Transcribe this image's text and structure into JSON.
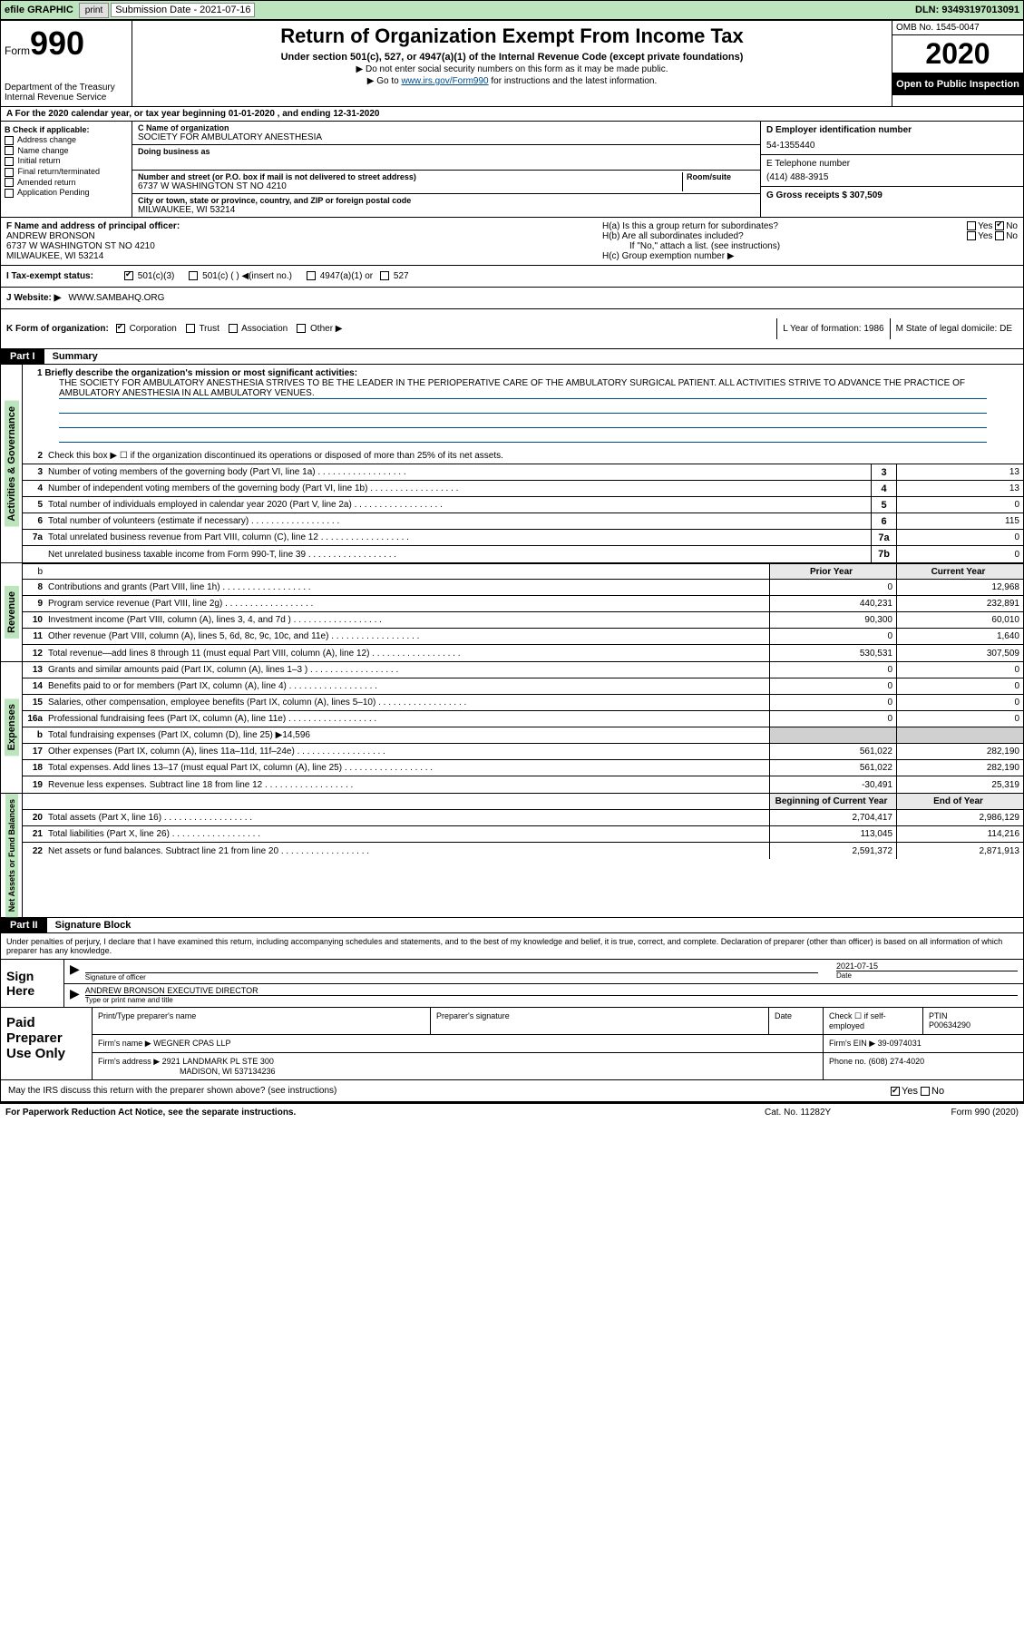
{
  "topbar": {
    "efile": "efile GRAPHIC",
    "print": "print",
    "subm_label": "Submission Date - 2021-07-16",
    "dln_label": "DLN: 93493197013091"
  },
  "header": {
    "form_word": "Form",
    "form_num": "990",
    "dept": "Department of the Treasury\nInternal Revenue Service",
    "title": "Return of Organization Exempt From Income Tax",
    "subtitle": "Under section 501(c), 527, or 4947(a)(1) of the Internal Revenue Code (except private foundations)",
    "note1": "▶ Do not enter social security numbers on this form as it may be made public.",
    "note2_pre": "▶ Go to ",
    "note2_link": "www.irs.gov/Form990",
    "note2_post": " for instructions and the latest information.",
    "omb": "OMB No. 1545-0047",
    "year": "2020",
    "inspection": "Open to Public Inspection"
  },
  "period": "A For the 2020 calendar year, or tax year beginning 01-01-2020    , and ending 12-31-2020",
  "boxB": {
    "label": "B Check if applicable:",
    "items": [
      "Address change",
      "Name change",
      "Initial return",
      "Final return/terminated",
      "Amended return",
      "Application Pending"
    ]
  },
  "boxC": {
    "name_lbl": "C Name of organization",
    "name": "SOCIETY FOR AMBULATORY ANESTHESIA",
    "dba_lbl": "Doing business as",
    "dba": "",
    "addr_lbl": "Number and street (or P.O. box if mail is not delivered to street address)",
    "room_lbl": "Room/suite",
    "addr": "6737 W WASHINGTON ST NO 4210",
    "city_lbl": "City or town, state or province, country, and ZIP or foreign postal code",
    "city": "MILWAUKEE, WI  53214"
  },
  "boxD": {
    "label": "D Employer identification number",
    "value": "54-1355440"
  },
  "boxE": {
    "label": "E Telephone number",
    "value": "(414) 488-3915"
  },
  "boxG": {
    "label": "G Gross receipts $ 307,509"
  },
  "boxF": {
    "label": "F  Name and address of principal officer:",
    "name": "ANDREW BRONSON",
    "addr": "6737 W WASHINGTON ST NO 4210",
    "city": "MILWAUKEE, WI  53214"
  },
  "boxH": {
    "a": "H(a)  Is this a group return for subordinates?",
    "b": "H(b)  Are all subordinates included?",
    "b_note": "If \"No,\" attach a list. (see instructions)",
    "c": "H(c)  Group exemption number ▶"
  },
  "boxI": {
    "label": "I   Tax-exempt status:",
    "opts": [
      "501(c)(3)",
      "501(c) (  ) ◀(insert no.)",
      "4947(a)(1) or",
      "527"
    ]
  },
  "boxJ": {
    "label": "J   Website: ▶",
    "value": "WWW.SAMBAHQ.ORG"
  },
  "boxK": {
    "label": "K Form of organization:",
    "opts": [
      "Corporation",
      "Trust",
      "Association",
      "Other ▶"
    ]
  },
  "boxL": {
    "label": "L Year of formation: 1986"
  },
  "boxM": {
    "label": "M State of legal domicile: DE"
  },
  "part1": {
    "hdr": "Part I",
    "title": "Summary",
    "mission_lbl": "1  Briefly describe the organization's mission or most significant activities:",
    "mission": "THE SOCIETY FOR AMBULATORY ANESTHESIA STRIVES TO BE THE LEADER IN THE PERIOPERATIVE CARE OF THE AMBULATORY SURGICAL PATIENT. ALL ACTIVITIES STRIVE TO ADVANCE THE PRACTICE OF AMBULATORY ANESTHESIA IN ALL AMBULATORY VENUES.",
    "line2": "Check this box ▶ ☐  if the organization discontinued its operations or disposed of more than 25% of its net assets."
  },
  "gov_lines": [
    {
      "n": "3",
      "txt": "Number of voting members of the governing body (Part VI, line 1a)",
      "box": "3",
      "v": "13"
    },
    {
      "n": "4",
      "txt": "Number of independent voting members of the governing body (Part VI, line 1b)",
      "box": "4",
      "v": "13"
    },
    {
      "n": "5",
      "txt": "Total number of individuals employed in calendar year 2020 (Part V, line 2a)",
      "box": "5",
      "v": "0"
    },
    {
      "n": "6",
      "txt": "Total number of volunteers (estimate if necessary)",
      "box": "6",
      "v": "115"
    },
    {
      "n": "7a",
      "txt": "Total unrelated business revenue from Part VIII, column (C), line 12",
      "box": "7a",
      "v": "0"
    },
    {
      "n": "",
      "txt": "Net unrelated business taxable income from Form 990-T, line 39",
      "box": "7b",
      "v": "0"
    }
  ],
  "yr_hdr": {
    "prior": "Prior Year",
    "current": "Current Year"
  },
  "rev_label": "Revenue",
  "rev_lines": [
    {
      "n": "8",
      "txt": "Contributions and grants (Part VIII, line 1h)",
      "p": "0",
      "c": "12,968"
    },
    {
      "n": "9",
      "txt": "Program service revenue (Part VIII, line 2g)",
      "p": "440,231",
      "c": "232,891"
    },
    {
      "n": "10",
      "txt": "Investment income (Part VIII, column (A), lines 3, 4, and 7d )",
      "p": "90,300",
      "c": "60,010"
    },
    {
      "n": "11",
      "txt": "Other revenue (Part VIII, column (A), lines 5, 6d, 8c, 9c, 10c, and 11e)",
      "p": "0",
      "c": "1,640"
    },
    {
      "n": "12",
      "txt": "Total revenue—add lines 8 through 11 (must equal Part VIII, column (A), line 12)",
      "p": "530,531",
      "c": "307,509"
    }
  ],
  "exp_label": "Expenses",
  "exp_lines": [
    {
      "n": "13",
      "txt": "Grants and similar amounts paid (Part IX, column (A), lines 1–3 )",
      "p": "0",
      "c": "0"
    },
    {
      "n": "14",
      "txt": "Benefits paid to or for members (Part IX, column (A), line 4)",
      "p": "0",
      "c": "0"
    },
    {
      "n": "15",
      "txt": "Salaries, other compensation, employee benefits (Part IX, column (A), lines 5–10)",
      "p": "0",
      "c": "0"
    },
    {
      "n": "16a",
      "txt": "Professional fundraising fees (Part IX, column (A), line 11e)",
      "p": "0",
      "c": "0"
    },
    {
      "n": "b",
      "txt": "Total fundraising expenses (Part IX, column (D), line 25) ▶14,596",
      "p": "",
      "c": "",
      "gray": true
    },
    {
      "n": "17",
      "txt": "Other expenses (Part IX, column (A), lines 11a–11d, 11f–24e)",
      "p": "561,022",
      "c": "282,190"
    },
    {
      "n": "18",
      "txt": "Total expenses. Add lines 13–17 (must equal Part IX, column (A), line 25)",
      "p": "561,022",
      "c": "282,190"
    },
    {
      "n": "19",
      "txt": "Revenue less expenses. Subtract line 18 from line 12",
      "p": "-30,491",
      "c": "25,319"
    }
  ],
  "na_label": "Net Assets or Fund Balances",
  "na_hdr": {
    "prior": "Beginning of Current Year",
    "current": "End of Year"
  },
  "na_lines": [
    {
      "n": "20",
      "txt": "Total assets (Part X, line 16)",
      "p": "2,704,417",
      "c": "2,986,129"
    },
    {
      "n": "21",
      "txt": "Total liabilities (Part X, line 26)",
      "p": "113,045",
      "c": "114,216"
    },
    {
      "n": "22",
      "txt": "Net assets or fund balances. Subtract line 21 from line 20",
      "p": "2,591,372",
      "c": "2,871,913"
    }
  ],
  "part2": {
    "hdr": "Part II",
    "title": "Signature Block",
    "decl": "Under penalties of perjury, I declare that I have examined this return, including accompanying schedules and statements, and to the best of my knowledge and belief, it is true, correct, and complete. Declaration of preparer (other than officer) is based on all information of which preparer has any knowledge."
  },
  "sign": {
    "label": "Sign Here",
    "sig_lbl": "Signature of officer",
    "date_lbl": "Date",
    "date": "2021-07-15",
    "name": "ANDREW BRONSON  EXECUTIVE DIRECTOR",
    "name_lbl": "Type or print name and title"
  },
  "paid": {
    "label": "Paid Preparer Use Only",
    "h1": "Print/Type preparer's name",
    "h2": "Preparer's signature",
    "h3": "Date",
    "h4_pre": "Check ☐ if self-employed",
    "h5": "PTIN",
    "ptin": "P00634290",
    "firm_lbl": "Firm's name     ▶",
    "firm": "WEGNER CPAS LLP",
    "ein_lbl": "Firm's EIN ▶",
    "ein": "39-0974031",
    "addr_lbl": "Firm's address ▶",
    "addr1": "2921 LANDMARK PL STE 300",
    "addr2": "MADISON, WI  537134236",
    "phone_lbl": "Phone no.",
    "phone": "(608) 274-4020"
  },
  "discuss": "May the IRS discuss this return with the preparer shown above? (see instructions)",
  "footer": {
    "left": "For Paperwork Reduction Act Notice, see the separate instructions.",
    "mid": "Cat. No. 11282Y",
    "right": "Form 990 (2020)"
  },
  "gov_label": "Activities & Governance"
}
